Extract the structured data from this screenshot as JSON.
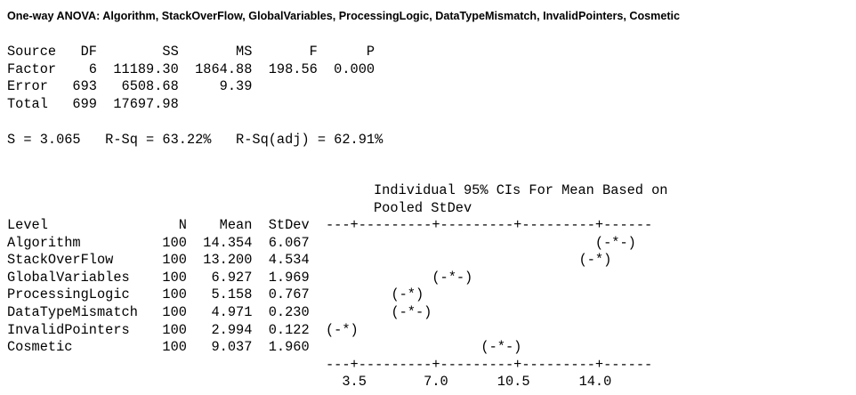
{
  "title": "One-way ANOVA: Algorithm, StackOverFlow, GlobalVariables, ProcessingLogic, DataTypeMismatch, InvalidPointers, Cosmetic",
  "anova_table": {
    "header": "Source   DF        SS       MS       F      P",
    "rows": [
      "Factor    6  11189.30  1864.88  198.56  0.000",
      "Error   693   6508.68     9.39",
      "Total   699  17697.98"
    ]
  },
  "fit_stats": "S = 3.065   R-Sq = 63.22%   R-Sq(adj) = 62.91%",
  "ci_header": [
    "Individual 95% CIs For Mean Based on",
    "Pooled StDev"
  ],
  "levels_table": {
    "lines": [
      "Level                N    Mean  StDev  ---+---------+---------+---------+------",
      "Algorithm          100  14.354  6.067                                   (-*-)",
      "StackOverFlow      100  13.200  4.534                                 (-*)",
      "GlobalVariables    100   6.927  1.969               (-*-)",
      "ProcessingLogic    100   5.158  0.767          (-*)",
      "DataTypeMismatch   100   4.971  0.230          (-*-)",
      "InvalidPointers    100   2.994  0.122  (-*)",
      "Cosmetic           100   9.037  1.960                     (-*-)",
      "                                       ---+---------+---------+---------+------",
      "                                         3.5       7.0      10.5      14.0"
    ]
  }
}
